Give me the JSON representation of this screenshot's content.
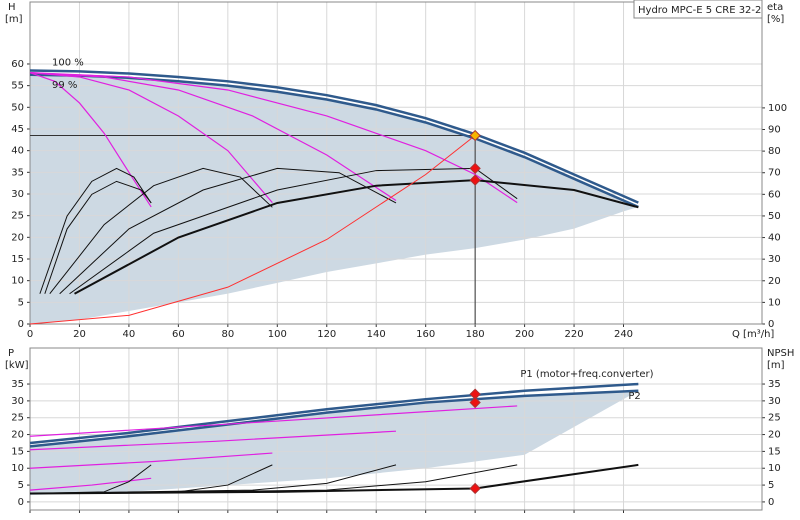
{
  "chart_data": [
    {
      "type": "line",
      "title": "Hydro MPC-E 5 CRE 32-2",
      "y_label": "H",
      "y_unit": "[m]",
      "y2_label": "eta",
      "y2_unit": "[%]",
      "x_label": "Q [m³/h]",
      "xlim": [
        0,
        296
      ],
      "xticks": [
        0,
        20,
        40,
        60,
        80,
        100,
        120,
        140,
        160,
        180,
        200,
        220,
        240
      ],
      "ylim": [
        0,
        74.3
      ],
      "yticks": [
        0,
        5,
        10,
        15,
        20,
        25,
        30,
        35,
        40,
        45,
        50,
        55,
        60
      ],
      "y2lim": [
        0,
        149
      ],
      "y2ticks": [
        0,
        10,
        20,
        30,
        40,
        50,
        60,
        70,
        80,
        90,
        100
      ],
      "grid": true,
      "series": [
        {
          "x": [
            0,
            20,
            40,
            60,
            80,
            100,
            120,
            140,
            160,
            180,
            200,
            220,
            240,
            246
          ],
          "values": [
            57.5,
            57.3,
            56.8,
            56,
            55,
            53.6,
            51.8,
            49.5,
            46.5,
            42.8,
            38.5,
            33.5,
            28.5,
            27
          ],
          "lower": [
            0,
            1,
            3,
            5,
            7,
            9.5,
            12,
            14,
            16,
            17.5,
            19.5,
            22,
            26,
            27
          ],
          "fill": "#cdd9e3",
          "color": "#2f5a8c",
          "width": 2.5
        },
        {
          "name": "100 %",
          "x": [
            0,
            20,
            40,
            60,
            80,
            100,
            120,
            140,
            160,
            180,
            200,
            220,
            240,
            246
          ],
          "values": [
            58.5,
            58.3,
            57.8,
            57,
            56,
            54.6,
            52.8,
            50.5,
            47.5,
            43.8,
            39.5,
            34.5,
            29.5,
            28
          ],
          "color": "#2f5a8c",
          "width": 2.5
        },
        {
          "x": [
            0,
            10,
            20,
            30,
            40,
            49
          ],
          "values": [
            58,
            56,
            51,
            44,
            35,
            27
          ],
          "color": "#e020e0",
          "width": 1.2
        },
        {
          "x": [
            0,
            20,
            40,
            60,
            80,
            98
          ],
          "values": [
            58,
            57,
            54,
            48,
            40,
            28
          ],
          "color": "#e020e0",
          "width": 1.2
        },
        {
          "x": [
            0,
            30,
            60,
            90,
            120,
            148
          ],
          "values": [
            58,
            57,
            54,
            48,
            39,
            28.5
          ],
          "color": "#e020e0",
          "width": 1.2
        },
        {
          "x": [
            0,
            40,
            80,
            120,
            160,
            180,
            197
          ],
          "values": [
            58,
            57,
            54,
            48,
            40,
            34.5,
            28
          ],
          "color": "#e020e0",
          "width": 1.2
        },
        {
          "x": [
            4,
            15,
            25,
            35,
            42,
            49
          ],
          "values": [
            14,
            50,
            66,
            72,
            68,
            56
          ],
          "axis": "y2",
          "color": "#111",
          "width": 1
        },
        {
          "x": [
            6,
            15,
            25,
            35,
            45,
            49
          ],
          "values": [
            14,
            44,
            60,
            66,
            62,
            56
          ],
          "axis": "y2",
          "color": "#111",
          "width": 1
        },
        {
          "x": [
            8,
            30,
            50,
            70,
            85,
            98
          ],
          "values": [
            14,
            46,
            64,
            72,
            68,
            54
          ],
          "axis": "y2",
          "color": "#111",
          "width": 1
        },
        {
          "x": [
            12,
            40,
            70,
            100,
            125,
            148
          ],
          "values": [
            14,
            44,
            62,
            72,
            70,
            56
          ],
          "axis": "y2",
          "color": "#111",
          "width": 1
        },
        {
          "x": [
            16,
            50,
            100,
            140,
            180,
            197
          ],
          "values": [
            14,
            42,
            62,
            71,
            72,
            58
          ],
          "axis": "y2",
          "color": "#111",
          "width": 1
        },
        {
          "x": [
            18,
            60,
            100,
            140,
            180,
            220,
            246
          ],
          "values": [
            14,
            40,
            56,
            64,
            66.6,
            62,
            54
          ],
          "axis": "y2",
          "color": "#111",
          "width": 2
        },
        {
          "x": [
            0,
            40,
            80,
            120,
            160,
            180
          ],
          "values": [
            0,
            2,
            8.5,
            19.5,
            34.5,
            43.5
          ],
          "color": "#ff3030",
          "width": 1
        },
        {
          "name": "99 %",
          "x": [
            0,
            20
          ],
          "values": [
            57.5,
            57.3
          ],
          "color": "#2f5a8c",
          "width": 0
        }
      ],
      "points": [
        {
          "x": 180,
          "y": 43.5,
          "color": "#f7b500",
          "guide": true
        },
        {
          "x": 180,
          "y": 72,
          "axis": "y2",
          "color": "#ee1111"
        },
        {
          "x": 180,
          "y": 66.6,
          "axis": "y2",
          "color": "#ee1111"
        }
      ]
    },
    {
      "type": "line",
      "y_label": "P",
      "y_unit": "[kW]",
      "y2_label": "NPSH",
      "y2_unit": "[m]",
      "xlim": [
        0,
        296
      ],
      "xticks": [
        0,
        20,
        40,
        60,
        80,
        100,
        120,
        140,
        160,
        180,
        200,
        220,
        240
      ],
      "ylim": [
        -2.4,
        45.7
      ],
      "yticks": [
        0,
        5,
        10,
        15,
        20,
        25,
        30,
        35
      ],
      "y2lim": [
        -2.4,
        45.7
      ],
      "y2ticks": [
        0,
        5,
        10,
        15,
        20,
        25,
        30,
        35
      ],
      "grid": true,
      "series": [
        {
          "name": "P2",
          "x": [
            0,
            40,
            80,
            120,
            160,
            200,
            246
          ],
          "values": [
            16.5,
            19.5,
            23,
            26.5,
            29.5,
            31.5,
            33
          ],
          "lower": [
            2,
            3,
            5,
            7,
            10,
            14,
            33
          ],
          "fill": "#cdd9e3",
          "color": "#2f5a8c",
          "width": 2.5
        },
        {
          "name": "P1 (motor+freq.converter)",
          "x": [
            0,
            40,
            80,
            120,
            160,
            200,
            246
          ],
          "values": [
            17.5,
            20.5,
            24,
            27.5,
            30.5,
            33,
            35
          ],
          "color": "#2f5a8c",
          "width": 2.5
        },
        {
          "x": [
            0,
            25,
            49
          ],
          "values": [
            3.5,
            5,
            7
          ],
          "color": "#e020e0",
          "width": 1.2
        },
        {
          "x": [
            0,
            50,
            98
          ],
          "values": [
            10,
            12,
            14.5
          ],
          "color": "#e020e0",
          "width": 1.2
        },
        {
          "x": [
            0,
            75,
            148
          ],
          "values": [
            15.5,
            18,
            21
          ],
          "color": "#e020e0",
          "width": 1.2
        },
        {
          "x": [
            0,
            100,
            197
          ],
          "values": [
            19.5,
            24,
            28.5
          ],
          "color": "#e020e0",
          "width": 1.2
        },
        {
          "x": [
            0,
            30,
            40,
            49
          ],
          "values": [
            2.5,
            3,
            6,
            11
          ],
          "axis": "y2",
          "color": "#111",
          "width": 1
        },
        {
          "x": [
            0,
            60,
            80,
            98
          ],
          "values": [
            2.5,
            3,
            5,
            11
          ],
          "axis": "y2",
          "color": "#111",
          "width": 1
        },
        {
          "x": [
            0,
            90,
            120,
            148
          ],
          "values": [
            2.5,
            3.5,
            5.5,
            11
          ],
          "axis": "y2",
          "color": "#111",
          "width": 1
        },
        {
          "x": [
            0,
            120,
            160,
            197
          ],
          "values": [
            2.5,
            3.5,
            6,
            11
          ],
          "axis": "y2",
          "color": "#111",
          "width": 1
        },
        {
          "x": [
            0,
            100,
            180,
            246
          ],
          "values": [
            2.5,
            3,
            4,
            11
          ],
          "axis": "y2",
          "color": "#111",
          "width": 2
        }
      ],
      "points": [
        {
          "x": 180,
          "y": 32,
          "color": "#ee1111"
        },
        {
          "x": 180,
          "y": 29.5,
          "color": "#ee1111"
        },
        {
          "x": 180,
          "y": 4,
          "axis": "y2",
          "color": "#ee1111"
        }
      ]
    }
  ]
}
